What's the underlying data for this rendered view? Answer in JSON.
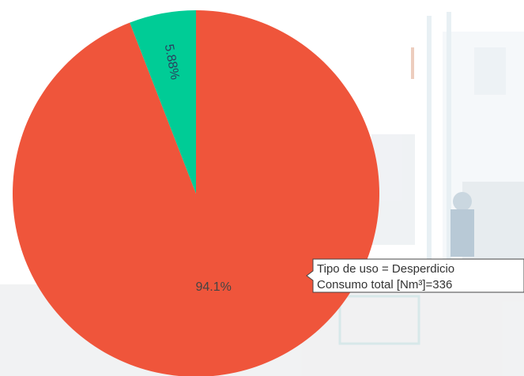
{
  "chart_data": {
    "type": "pie",
    "values": [
      94.1,
      5.88
    ],
    "value_labels": [
      "94.1%",
      "5.88%"
    ],
    "colors": [
      "#ef553b",
      "#00cc96"
    ],
    "tooltip": {
      "lines": [
        "Tipo de uso = Desperdicio",
        "Consumo total [Nm³]=336"
      ]
    }
  }
}
